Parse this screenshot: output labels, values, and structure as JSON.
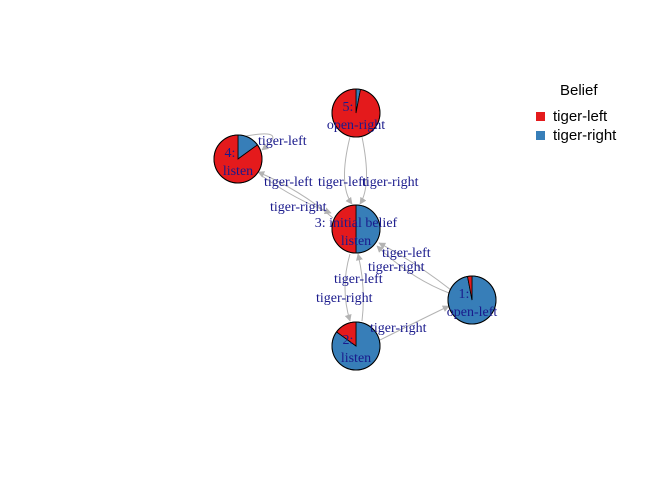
{
  "legend": {
    "title": "Belief",
    "items": [
      {
        "label": "tiger-left",
        "color": "#e41a1c"
      },
      {
        "label": "tiger-right",
        "color": "#377eb8"
      }
    ]
  },
  "nodes": [
    {
      "id": "1",
      "label_top": "1:",
      "label_bottom": "open-left",
      "belief": [
        0.03,
        0.97
      ]
    },
    {
      "id": "2",
      "label_top": "2:",
      "label_bottom": "listen",
      "belief": [
        0.15,
        0.85
      ]
    },
    {
      "id": "3",
      "label_top": "3: initial belief",
      "label_bottom": "listen",
      "belief": [
        0.5,
        0.5
      ]
    },
    {
      "id": "4",
      "label_top": "4:",
      "label_bottom": "listen",
      "belief": [
        0.85,
        0.15
      ]
    },
    {
      "id": "5",
      "label_top": "5:",
      "label_bottom": "open-right",
      "belief": [
        0.97,
        0.03
      ]
    }
  ],
  "edges": [
    {
      "from": "5",
      "to": "3",
      "label": "tiger-left"
    },
    {
      "from": "5",
      "to": "3",
      "label": "tiger-right"
    },
    {
      "from": "4",
      "to": "4",
      "label": "tiger-left"
    },
    {
      "from": "3",
      "to": "4",
      "label": "tiger-left"
    },
    {
      "from": "4",
      "to": "3",
      "label": "tiger-right"
    },
    {
      "from": "1",
      "to": "3",
      "label": "tiger-left"
    },
    {
      "from": "1",
      "to": "3",
      "label": "tiger-right"
    },
    {
      "from": "3",
      "to": "2",
      "label": "tiger-left"
    },
    {
      "from": "2",
      "to": "3",
      "label": "tiger-right"
    },
    {
      "from": "2",
      "to": "1",
      "label": "tiger-right"
    }
  ]
}
